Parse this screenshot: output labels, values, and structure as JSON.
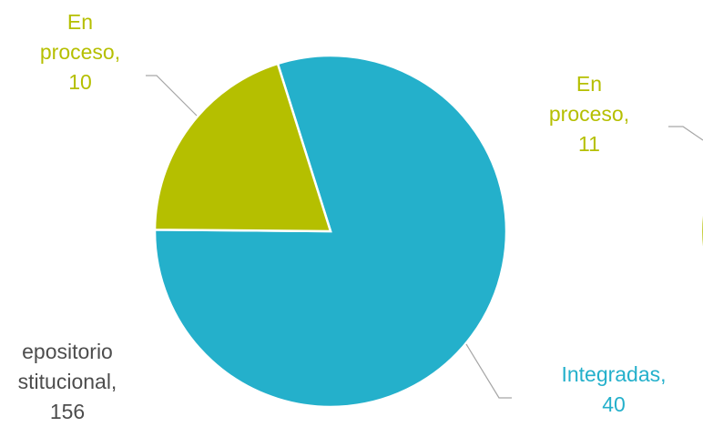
{
  "chart_data": [
    {
      "type": "pie",
      "slices": [
        {
          "label": "Integradas",
          "value": 40,
          "color": "#24b0cb"
        },
        {
          "label": "En proceso",
          "value": 10,
          "color": "#b5bf00"
        }
      ],
      "labels": [
        {
          "lines": [
            "En",
            "proceso,",
            "10"
          ],
          "color": "#b5bf00"
        }
      ]
    },
    {
      "type": "pie",
      "slices": [
        {
          "label": "Integradas",
          "value": 40,
          "color": "#24b0cb"
        },
        {
          "label": "En proceso",
          "value": 11,
          "color": "#b5bf00"
        }
      ],
      "labels": [
        {
          "lines": [
            "En",
            "proceso,",
            "11"
          ],
          "color": "#b5bf00"
        },
        {
          "lines": [
            "Integradas,",
            "40"
          ],
          "color": "#24b0cb"
        }
      ]
    },
    {
      "type": "pie",
      "slices": [
        {
          "label": "Repositorio institucional",
          "value": 156,
          "color": "#24b0cb"
        }
      ],
      "labels": [
        {
          "lines": [
            "epositorio",
            "stitucional,",
            "156"
          ],
          "color": "#4d4d4d"
        }
      ]
    }
  ]
}
